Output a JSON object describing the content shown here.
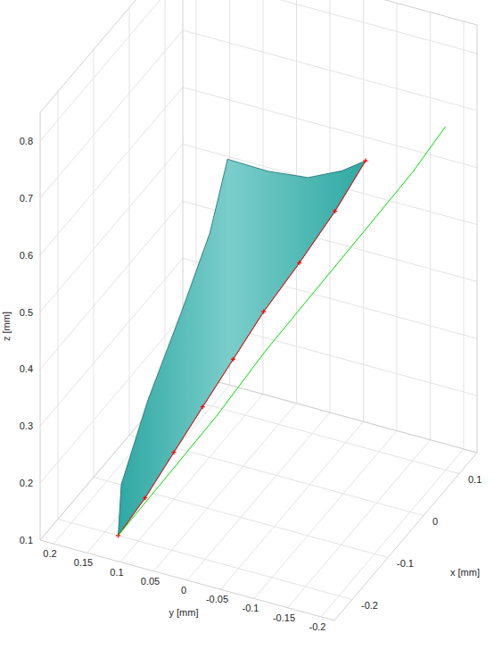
{
  "chart_data": {
    "type": "surface3d",
    "xlabel": "x [mm]",
    "ylabel": "y [mm]",
    "zlabel": "z [mm]",
    "xlim": [
      -0.25,
      0.15
    ],
    "ylim": [
      -0.22,
      0.22
    ],
    "zlim": [
      0.1,
      0.85
    ],
    "xticks": [
      -0.2,
      -0.1,
      0,
      0.1
    ],
    "yticks": [
      0.2,
      0.15,
      0.1,
      0.05,
      0,
      -0.05,
      -0.1,
      -0.15,
      -0.2
    ],
    "zticks": [
      0.1,
      0.2,
      0.3,
      0.4,
      0.5,
      0.6,
      0.7,
      0.8
    ],
    "grid": true,
    "series": [
      {
        "type": "surface",
        "color": "#2fa8a3",
        "x": [
          -0.2,
          -0.21,
          -0.2,
          -0.17,
          -0.14,
          -0.12,
          -0.1,
          -0.08,
          -0.06,
          -0.05,
          -0.07,
          -0.095,
          -0.12,
          -0.14,
          -0.16,
          -0.175,
          -0.19
        ],
        "y": [
          0.13,
          0.12,
          0.086,
          0.05,
          0.025,
          0.009,
          -0.04,
          -0.09,
          -0.13,
          -0.16,
          -0.125,
          -0.085,
          -0.045,
          -0.01,
          0.025,
          0.06,
          0.095
        ],
        "z": [
          0.1,
          0.2,
          0.35,
          0.5,
          0.62,
          0.74,
          0.72,
          0.71,
          0.72,
          0.74,
          0.655,
          0.57,
          0.49,
          0.41,
          0.33,
          0.25,
          0.17
        ]
      },
      {
        "type": "scatter",
        "color": "#ff0000",
        "marker": "plus",
        "x": [
          -0.2,
          -0.19,
          -0.175,
          -0.16,
          -0.14,
          -0.12,
          -0.095,
          -0.07,
          -0.05
        ],
        "y": [
          0.13,
          0.095,
          0.06,
          0.025,
          -0.01,
          -0.045,
          -0.085,
          -0.125,
          -0.16
        ],
        "z": [
          0.1,
          0.17,
          0.25,
          0.33,
          0.41,
          0.49,
          0.57,
          0.655,
          0.74
        ]
      },
      {
        "type": "line",
        "color": "#00dd00",
        "x": [
          -0.2,
          -0.158,
          -0.116,
          -0.074,
          -0.032,
          0.01,
          0.052,
          0.08
        ],
        "y": [
          0.13,
          0.079,
          0.028,
          -0.023,
          -0.074,
          -0.125,
          -0.176,
          -0.21
        ],
        "z": [
          0.1,
          0.19,
          0.28,
          0.38,
          0.47,
          0.56,
          0.65,
          0.72
        ]
      }
    ]
  }
}
